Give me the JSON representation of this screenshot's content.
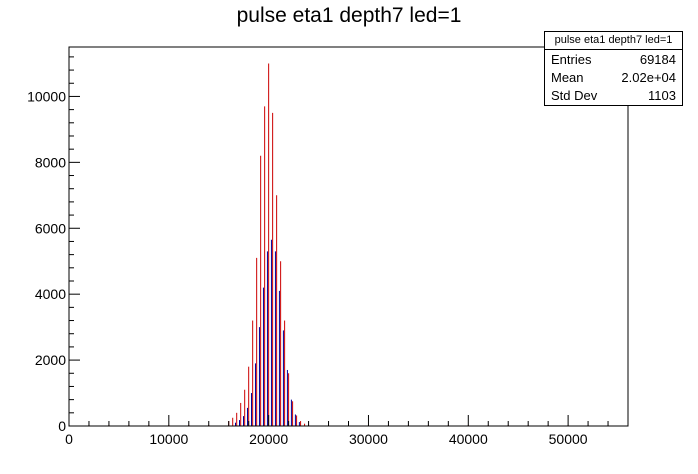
{
  "title": "pulse eta1 depth7 led=1",
  "stats_box": {
    "header": "pulse eta1 depth7 led=1",
    "rows": [
      {
        "label": "Entries",
        "value": "69184"
      },
      {
        "label": "Mean",
        "value": "2.02e+04"
      },
      {
        "label": "Std Dev",
        "value": "1103"
      }
    ]
  },
  "colors": {
    "primary": "#cc0000",
    "secondary": "#000099",
    "axis": "#000000"
  },
  "chart_data": {
    "type": "bar",
    "title": "pulse eta1 depth7 led=1",
    "xlabel": "",
    "ylabel": "",
    "xlim": [
      0,
      56000
    ],
    "ylim": [
      0,
      11500
    ],
    "x_ticks": [
      0,
      10000,
      20000,
      30000,
      40000,
      50000
    ],
    "y_ticks": [
      0,
      2000,
      4000,
      6000,
      8000,
      10000
    ],
    "series": [
      {
        "color": "#cc0000",
        "x": [
          2000,
          4000,
          6000,
          8000,
          10000,
          12000,
          14000,
          16000,
          16400,
          16800,
          17200,
          17600,
          18000,
          18400,
          18800,
          19200,
          19600,
          20000,
          20400,
          20800,
          21200,
          21600,
          22000,
          22400,
          22800,
          23200,
          23600,
          24000,
          26000,
          28000,
          30000,
          32000,
          34000,
          36000,
          38000,
          40000,
          42000,
          44000,
          46000,
          48000,
          50000,
          52000,
          54000
        ],
        "values": [
          30,
          30,
          30,
          30,
          30,
          30,
          30,
          150,
          250,
          400,
          700,
          1100,
          1800,
          3200,
          5100,
          8200,
          9700,
          11000,
          9500,
          7000,
          5000,
          3200,
          1600,
          750,
          320,
          150,
          70,
          40,
          25,
          25,
          25,
          25,
          25,
          25,
          25,
          25,
          25,
          25,
          25,
          25,
          25,
          25,
          25
        ]
      },
      {
        "color": "#000099",
        "x": [
          16600,
          17000,
          17400,
          17800,
          18200,
          18600,
          19000,
          19400,
          19800,
          20200,
          20600,
          21000,
          21400,
          21800,
          22200,
          22600,
          23000
        ],
        "values": [
          100,
          180,
          300,
          550,
          1000,
          1900,
          3000,
          4200,
          5300,
          5650,
          5300,
          4100,
          2900,
          1700,
          800,
          350,
          120
        ]
      }
    ]
  }
}
